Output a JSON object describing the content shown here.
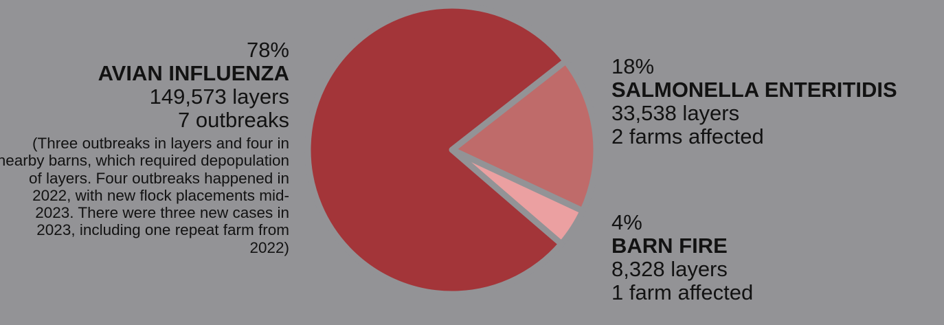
{
  "chart_data": {
    "type": "pie",
    "slices": [
      {
        "percent_label": "78%",
        "name": "AVIAN INFLUENZA",
        "layers": "149,573 layers",
        "detail": "7 outbreaks",
        "note": "(Three outbreaks in layers and four in nearby barns, which required depopulation of layers. Four outbreaks happened in 2022, with new flock placements mid-2023. There were three new cases in 2023, including one repeat farm from 2022)",
        "value": 149573,
        "color": "#a33539"
      },
      {
        "percent_label": "18%",
        "name": "SALMONELLA ENTERITIDIS",
        "layers": "33,538 layers",
        "detail": "2 farms affected",
        "value": 33538,
        "color": "#bf6b6a"
      },
      {
        "percent_label": "4%",
        "name": "BARN FIRE",
        "layers": "8,328 layers",
        "detail": "1 farm affected",
        "value": 8328,
        "color": "#eba0a1"
      }
    ],
    "background": "#939396",
    "separator_color": "#939396"
  }
}
